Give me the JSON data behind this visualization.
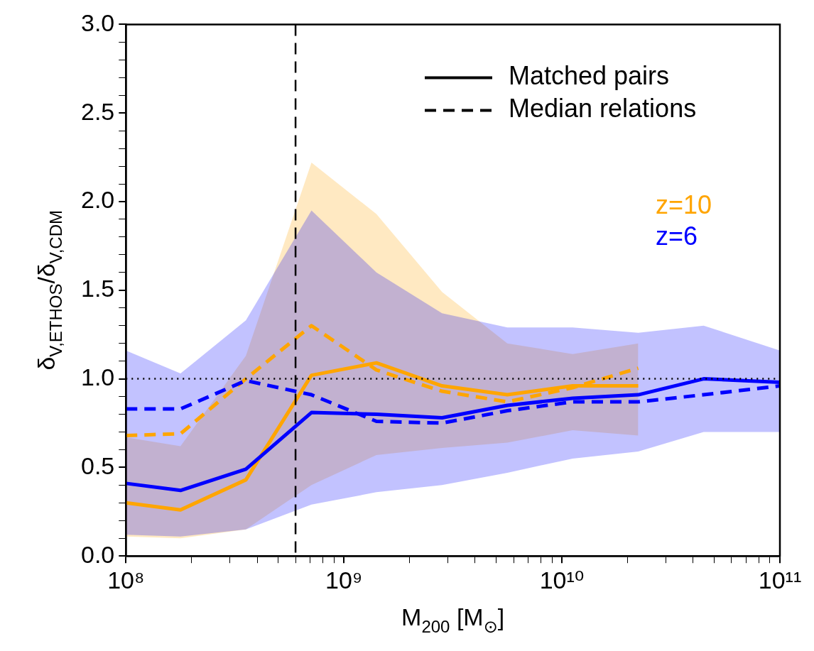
{
  "chart_data": {
    "type": "line",
    "xlabel": "M$_{200}$ [M$_{⊙}$]",
    "ylabel": "δ$_{V,ETHOS}$/δ$_{V,CDM}$",
    "log": "x",
    "grid": false,
    "legend": "top right",
    "xlim": [
      100000000.0,
      100000000000.0
    ],
    "ylim": [
      0,
      3
    ],
    "xticks": [
      {
        "value": 100000000.0,
        "label": "10⁸"
      },
      {
        "value": 200000000.0,
        "label": null
      },
      {
        "value": 300000000.0,
        "label": null
      },
      {
        "value": 400000000.0,
        "label": null
      },
      {
        "value": 500000000.0,
        "label": null
      },
      {
        "value": 600000000.0,
        "label": null
      },
      {
        "value": 700000000.0,
        "label": null
      },
      {
        "value": 800000000.0,
        "label": null
      },
      {
        "value": 900000000.0,
        "label": null
      },
      {
        "value": 1000000000.0,
        "label": "10⁹"
      },
      {
        "value": 2000000000.0,
        "label": null
      },
      {
        "value": 3000000000.0,
        "label": null
      },
      {
        "value": 4000000000.0,
        "label": null
      },
      {
        "value": 5000000000.0,
        "label": null
      },
      {
        "value": 6000000000.0,
        "label": null
      },
      {
        "value": 7000000000.0,
        "label": null
      },
      {
        "value": 8000000000.0,
        "label": null
      },
      {
        "value": 9000000000.0,
        "label": null
      },
      {
        "value": 10000000000.0,
        "label": "10¹⁰"
      },
      {
        "value": 20000000000.0,
        "label": null
      },
      {
        "value": 30000000000.0,
        "label": null
      },
      {
        "value": 40000000000.0,
        "label": null
      },
      {
        "value": 50000000000.0,
        "label": null
      },
      {
        "value": 60000000000.0,
        "label": null
      },
      {
        "value": 70000000000.0,
        "label": null
      },
      {
        "value": 80000000000.0,
        "label": null
      },
      {
        "value": 90000000000.0,
        "label": null
      },
      {
        "value": 100000000000.0,
        "label": "10¹¹"
      }
    ],
    "yticks": [
      {
        "value": 0,
        "label": "0.0"
      },
      {
        "value": 0.1,
        "label": null
      },
      {
        "value": 0.2,
        "label": null
      },
      {
        "value": 0.3,
        "label": null
      },
      {
        "value": 0.4,
        "label": null
      },
      {
        "value": 0.5,
        "label": "0.5"
      },
      {
        "value": 0.6,
        "label": null
      },
      {
        "value": 0.7,
        "label": null
      },
      {
        "value": 0.8,
        "label": null
      },
      {
        "value": 0.9,
        "label": null
      },
      {
        "value": 1,
        "label": "1.0"
      },
      {
        "value": 1.1,
        "label": null
      },
      {
        "value": 1.2,
        "label": null
      },
      {
        "value": 1.3,
        "label": null
      },
      {
        "value": 1.4,
        "label": null
      },
      {
        "value": 1.5,
        "label": "1.5"
      },
      {
        "value": 1.6,
        "label": null
      },
      {
        "value": 1.7,
        "label": null
      },
      {
        "value": 1.8,
        "label": null
      },
      {
        "value": 1.9,
        "label": null
      },
      {
        "value": 2,
        "label": "2.0"
      },
      {
        "value": 2.1,
        "label": null
      },
      {
        "value": 2.2,
        "label": null
      },
      {
        "value": 2.3,
        "label": null
      },
      {
        "value": 2.4,
        "label": null
      },
      {
        "value": 2.5,
        "label": "2.5"
      },
      {
        "value": 2.6,
        "label": null
      },
      {
        "value": 2.7,
        "label": null
      },
      {
        "value": 2.8,
        "label": null
      },
      {
        "value": 2.9,
        "label": null
      },
      {
        "value": 3,
        "label": "3.0"
      }
    ],
    "annotations": [
      "Matched pairs",
      "Median relations"
    ],
    "ref_lines": [
      {
        "axis": "y",
        "value": 1,
        "color": "#000000",
        "line_style": "dotted"
      },
      {
        "axis": "x",
        "value": 600000000.0,
        "color": "#000000",
        "line_style": "dashed"
      }
    ],
    "series": [
      {
        "name": "z=6",
        "color": "#0000ff",
        "line_style": "solid",
        "x": [
          100000000.0,
          178000000.0,
          355000000.0,
          710000000.0,
          1410000000.0,
          2820000000.0,
          5620000000.0,
          11200000000.0,
          22400000000.0,
          44700000000.0,
          100000000000.0
        ],
        "values": [
          0.41,
          0.37,
          0.49,
          0.81,
          0.8,
          0.78,
          0.85,
          0.89,
          0.91,
          1.0,
          0.98
        ],
        "lower": [
          0.12,
          0.11,
          0.15,
          0.29,
          0.36,
          0.4,
          0.47,
          0.55,
          0.59,
          0.7,
          0.7
        ],
        "upper": [
          1.16,
          1.03,
          1.33,
          1.95,
          1.6,
          1.37,
          1.29,
          1.29,
          1.26,
          1.3,
          1.16
        ]
      },
      {
        "color": "#0000ff",
        "line_style": "dashed",
        "x": [
          100000000.0,
          178000000.0,
          355000000.0,
          710000000.0,
          1410000000.0,
          2820000000.0,
          5620000000.0,
          11200000000.0,
          22400000000.0,
          44700000000.0,
          100000000000.0
        ],
        "values": [
          0.83,
          0.83,
          0.99,
          0.91,
          0.76,
          0.75,
          0.82,
          0.87,
          0.87,
          0.91,
          0.96
        ]
      },
      {
        "name": "z=10",
        "color": "#ffa500",
        "line_style": "solid",
        "x": [
          100000000.0,
          178000000.0,
          355000000.0,
          710000000.0,
          1410000000.0,
          2820000000.0,
          5620000000.0,
          11200000000.0,
          22400000000.0
        ],
        "values": [
          0.3,
          0.26,
          0.43,
          1.02,
          1.09,
          0.96,
          0.91,
          0.96,
          0.96
        ],
        "lower": [
          0.11,
          0.1,
          0.15,
          0.4,
          0.57,
          0.61,
          0.64,
          0.71,
          0.68
        ],
        "upper": [
          0.67,
          0.62,
          1.13,
          2.22,
          1.93,
          1.49,
          1.2,
          1.14,
          1.2
        ]
      },
      {
        "color": "#ffa500",
        "line_style": "dashed",
        "x": [
          100000000.0,
          178000000.0,
          355000000.0,
          710000000.0,
          1410000000.0,
          2820000000.0,
          5620000000.0,
          11200000000.0,
          22400000000.0
        ],
        "values": [
          0.68,
          0.69,
          1.0,
          1.3,
          1.05,
          0.93,
          0.87,
          0.95,
          1.06
        ]
      }
    ]
  }
}
